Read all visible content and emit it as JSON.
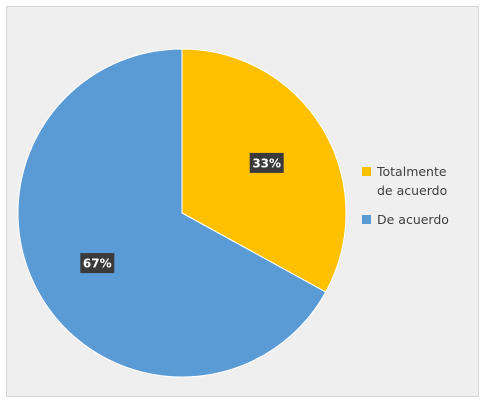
{
  "chart_data": {
    "type": "pie",
    "title": "",
    "categories": [
      "Totalmente de acuerdo",
      "De acuerdo"
    ],
    "values": [
      33,
      67
    ],
    "data_labels": [
      "33%",
      "67%"
    ],
    "colors": [
      "#ffc000",
      "#5b9bd5"
    ],
    "legend_position": "right",
    "legend": [
      {
        "line1": "Totalmente",
        "line2": "de acuerdo",
        "color": "#ffc000"
      },
      {
        "line1": "De acuerdo",
        "line2": "",
        "color": "#5b9bd5"
      }
    ]
  }
}
